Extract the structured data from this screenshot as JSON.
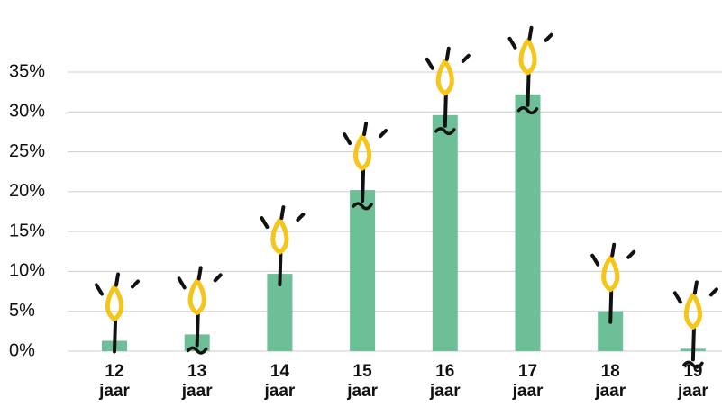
{
  "chart_data": {
    "type": "bar",
    "categories": [
      "12 jaar",
      "13 jaar",
      "14 jaar",
      "15 jaar",
      "16 jaar",
      "17 jaar",
      "18 jaar",
      "19 jaar"
    ],
    "values": [
      1.3,
      2.1,
      9.7,
      20.2,
      29.6,
      32.2,
      5.0,
      0.3
    ],
    "color": "#6dbf97",
    "ylim": [
      0,
      35
    ],
    "yticks": [
      {
        "value": 0,
        "label": "0%"
      },
      {
        "value": 5,
        "label": "5%"
      },
      {
        "value": 10,
        "label": "10%"
      },
      {
        "value": 15,
        "label": "15%"
      },
      {
        "value": 20,
        "label": "20%"
      },
      {
        "value": 25,
        "label": "25%"
      },
      {
        "value": 30,
        "label": "30%"
      },
      {
        "value": 35,
        "label": "35%"
      }
    ],
    "grid": true
  }
}
